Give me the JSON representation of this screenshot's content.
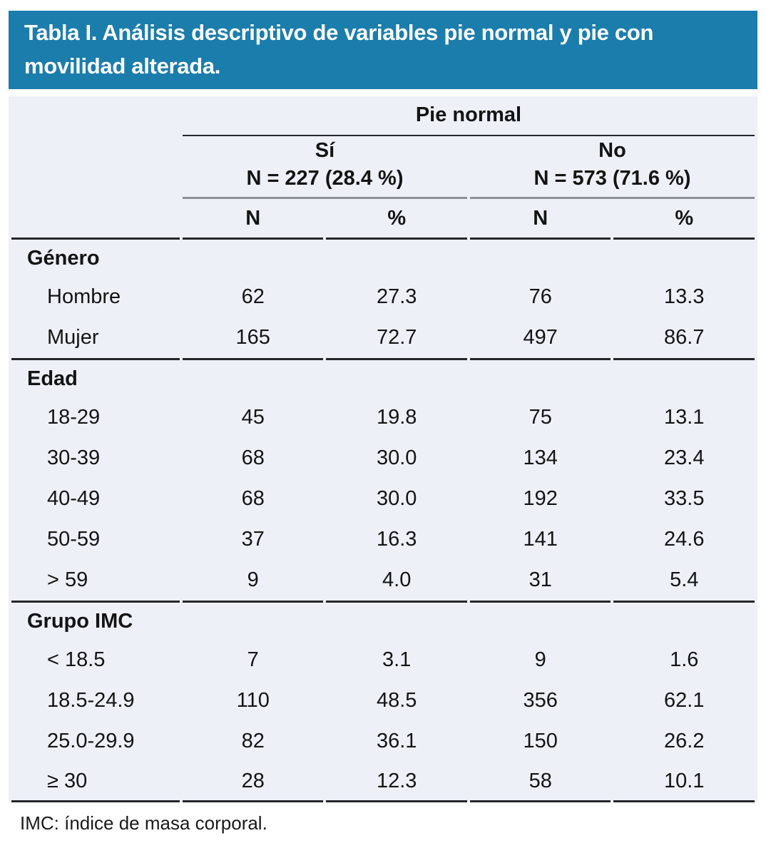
{
  "title": "Tabla I. Análisis descriptivo de variables pie normal y pie con movilidad alterada.",
  "colors": {
    "header_bg": "#1b7dac",
    "header_text": "#ffffff",
    "table_bg": "#edf0f7",
    "rule_dark": "#24262a",
    "rule_gray": "#8e9298",
    "body_text": "#141414"
  },
  "table": {
    "group_header": "Pie normal",
    "col_groups": [
      {
        "label": "Sí",
        "n_label": "N = 227 (28.4 %)"
      },
      {
        "label": "No",
        "n_label": "N = 573 (71.6 %)"
      }
    ],
    "col_headers": [
      "N",
      "%",
      "N",
      "%"
    ],
    "sections": [
      {
        "label": "Género",
        "rows": [
          {
            "label": "Hombre",
            "values": [
              "62",
              "27.3",
              "76",
              "13.3"
            ]
          },
          {
            "label": "Mujer",
            "values": [
              "165",
              "72.7",
              "497",
              "86.7"
            ]
          }
        ]
      },
      {
        "label": "Edad",
        "rows": [
          {
            "label": "18-29",
            "values": [
              "45",
              "19.8",
              "75",
              "13.1"
            ]
          },
          {
            "label": "30-39",
            "values": [
              "68",
              "30.0",
              "134",
              "23.4"
            ]
          },
          {
            "label": "40-49",
            "values": [
              "68",
              "30.0",
              "192",
              "33.5"
            ]
          },
          {
            "label": "50-59",
            "values": [
              "37",
              "16.3",
              "141",
              "24.6"
            ]
          },
          {
            "label": "> 59",
            "values": [
              "9",
              "4.0",
              "31",
              "5.4"
            ]
          }
        ]
      },
      {
        "label": "Grupo IMC",
        "rows": [
          {
            "label": "< 18.5",
            "values": [
              "7",
              "3.1",
              "9",
              "1.6"
            ]
          },
          {
            "label": "18.5-24.9",
            "values": [
              "110",
              "48.5",
              "356",
              "62.1"
            ]
          },
          {
            "label": "25.0-29.9",
            "values": [
              "82",
              "36.1",
              "150",
              "26.2"
            ]
          },
          {
            "label": "≥ 30",
            "values": [
              "28",
              "12.3",
              "58",
              "10.1"
            ]
          }
        ]
      }
    ]
  },
  "footnote": "IMC: índice de masa corporal."
}
